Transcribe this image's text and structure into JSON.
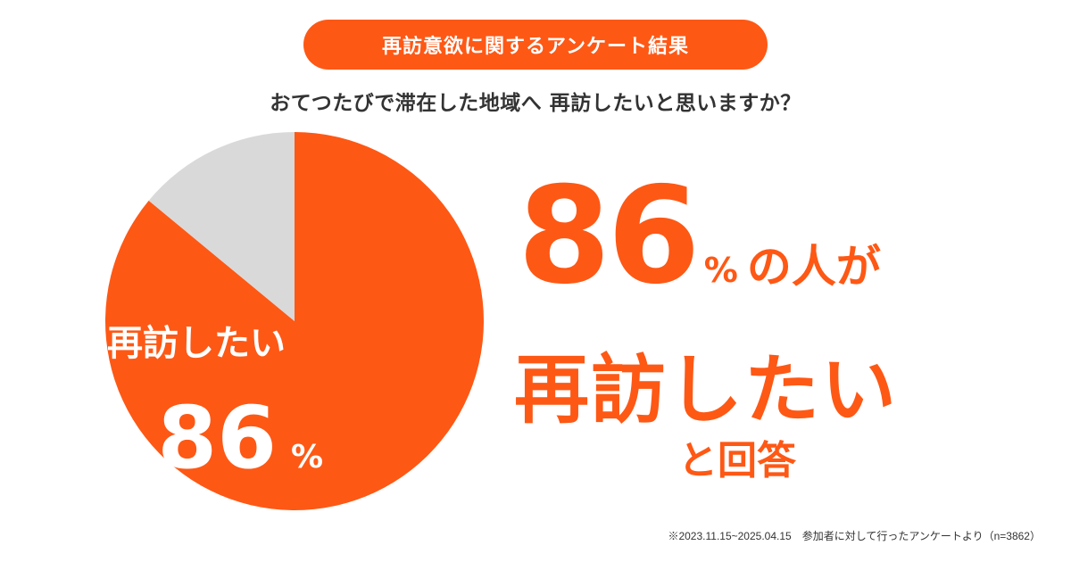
{
  "header": {
    "title": "再訪意欲に関するアンケート結果",
    "question": "おてつたびで滞在した地域へ 再訪したいと思いますか？"
  },
  "pie_label": {
    "text": "再訪したい",
    "number": "86",
    "unit": "%"
  },
  "headline": {
    "number": "86",
    "unit": "%",
    "suffix": "の人が",
    "main": "再訪したい",
    "tail": "と回答"
  },
  "footnote": "※2023.11.15~2025.04.15　参加者に対して行ったアンケートより（n=3862）",
  "colors": {
    "accent": "#fe5815",
    "rest": "#d9d9d9"
  },
  "chart_data": {
    "type": "pie",
    "categories": [
      "再訪したい",
      ""
    ],
    "values": [
      86,
      14
    ],
    "title": "再訪意欲に関するアンケート結果",
    "unit": "%"
  }
}
